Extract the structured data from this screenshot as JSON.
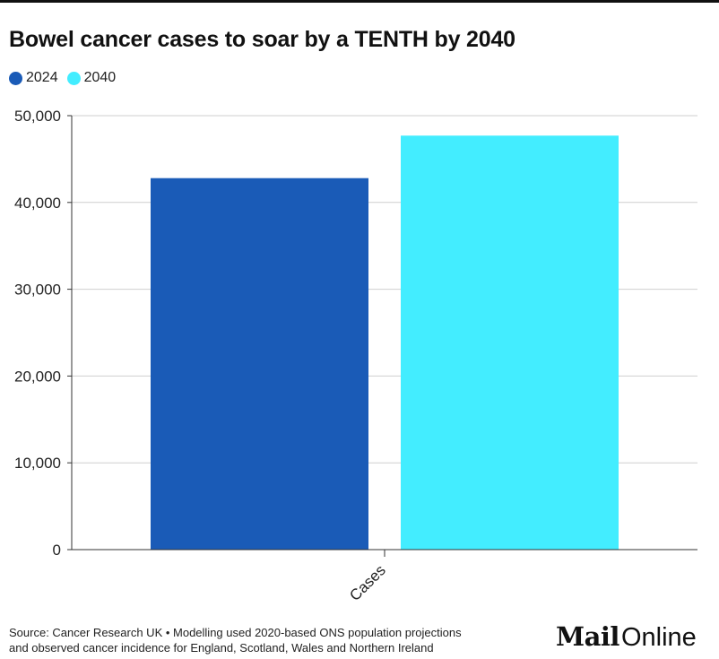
{
  "header": {
    "title": "Bowel cancer cases to soar by a TENTH by 2040"
  },
  "legend": {
    "items": [
      {
        "label": "2024",
        "color": "#1a5bb7"
      },
      {
        "label": "2040",
        "color": "#43edff"
      }
    ]
  },
  "chart_data": {
    "type": "bar",
    "categories": [
      "Cases"
    ],
    "series": [
      {
        "name": "2024",
        "values": [
          42800
        ],
        "color": "#1a5bb7"
      },
      {
        "name": "2040",
        "values": [
          47700
        ],
        "color": "#43edff"
      }
    ],
    "ylim": [
      0,
      50000
    ],
    "yticks": [
      0,
      10000,
      20000,
      30000,
      40000,
      50000
    ],
    "ytick_labels": [
      "0",
      "10,000",
      "20,000",
      "30,000",
      "40,000",
      "50,000"
    ],
    "grid": true,
    "legend_position": "top-left"
  },
  "footer": {
    "source_line1": "Source: Cancer Research UK • Modelling used 2020-based ONS population projections",
    "source_line2": "and observed cancer incidence for England, Scotland, Wales and Northern Ireland",
    "logo_mail": "Mail",
    "logo_online": "Online"
  }
}
